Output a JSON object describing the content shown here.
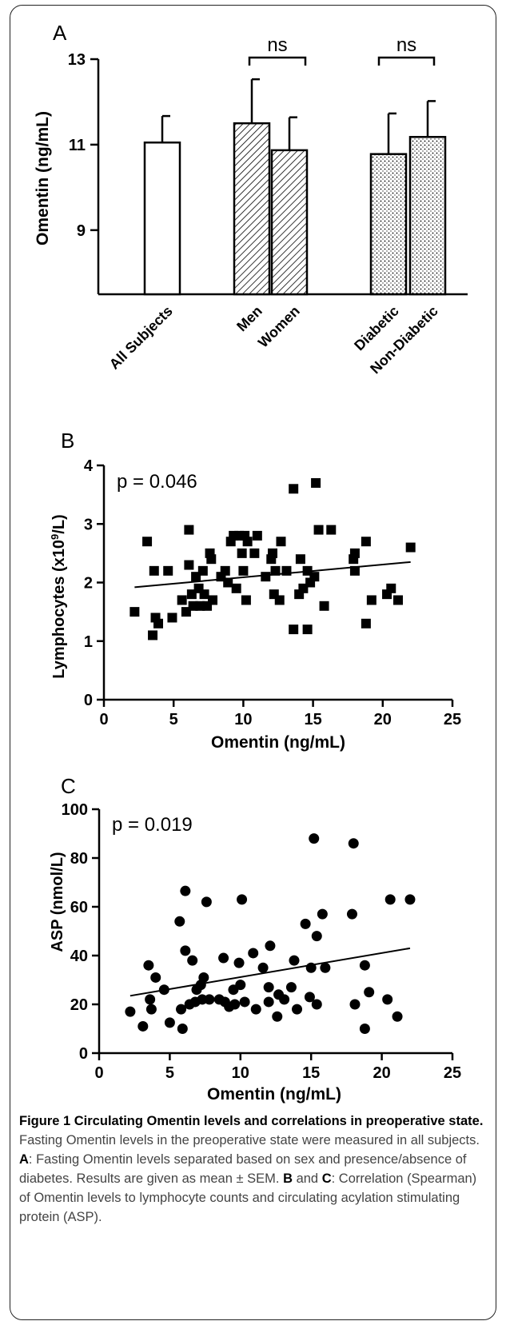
{
  "chart_data": [
    {
      "panel": "A",
      "type": "bar",
      "ylabel": "Omentin (ng/mL)",
      "ylim": [
        7.5,
        13
      ],
      "yticks": [
        9,
        11,
        13
      ],
      "categories": [
        "All Subjects",
        "Men",
        "Women",
        "Diabetic",
        "Non-Diabetic"
      ],
      "values": [
        11.05,
        11.5,
        10.87,
        10.78,
        11.18
      ],
      "errors": [
        0.62,
        1.03,
        0.77,
        0.95,
        0.84
      ],
      "fills": [
        "open",
        "hatched",
        "hatched",
        "dotted",
        "dotted"
      ],
      "comparisons": [
        {
          "pair": [
            "Men",
            "Women"
          ],
          "label": "ns"
        },
        {
          "pair": [
            "Diabetic",
            "Non-Diabetic"
          ],
          "label": "ns"
        }
      ]
    },
    {
      "panel": "B",
      "type": "scatter",
      "marker": "square",
      "annotation": "p = 0.046",
      "xlabel": "Omentin (ng/mL)",
      "ylabel_main": "Lymphocytes (x10",
      "ylabel_sup": "9",
      "ylabel_tail": "/L)",
      "xlim": [
        0,
        25
      ],
      "ylim": [
        0,
        4
      ],
      "xticks": [
        0,
        5,
        10,
        15,
        20,
        25
      ],
      "yticks": [
        0,
        1,
        2,
        3,
        4
      ],
      "trend": [
        [
          2.2,
          1.92
        ],
        [
          22,
          2.35
        ]
      ],
      "points": [
        [
          2.2,
          1.5
        ],
        [
          3.1,
          2.7
        ],
        [
          3.5,
          1.1
        ],
        [
          3.6,
          2.2
        ],
        [
          3.7,
          1.4
        ],
        [
          3.9,
          1.3
        ],
        [
          4.6,
          2.2
        ],
        [
          4.9,
          1.4
        ],
        [
          5.6,
          1.7
        ],
        [
          5.9,
          1.5
        ],
        [
          6.1,
          2.3
        ],
        [
          6.1,
          2.9
        ],
        [
          6.3,
          1.8
        ],
        [
          6.4,
          1.6
        ],
        [
          6.6,
          2.1
        ],
        [
          6.8,
          1.9
        ],
        [
          6.9,
          1.6
        ],
        [
          7.1,
          2.2
        ],
        [
          7.2,
          1.8
        ],
        [
          7.4,
          1.6
        ],
        [
          7.6,
          2.5
        ],
        [
          7.7,
          2.4
        ],
        [
          7.8,
          1.7
        ],
        [
          8.4,
          2.1
        ],
        [
          8.7,
          2.2
        ],
        [
          8.9,
          2.0
        ],
        [
          9.1,
          2.7
        ],
        [
          9.3,
          2.8
        ],
        [
          9.5,
          1.9
        ],
        [
          9.7,
          2.8
        ],
        [
          9.9,
          2.5
        ],
        [
          10.0,
          2.2
        ],
        [
          10.1,
          2.8
        ],
        [
          10.2,
          1.7
        ],
        [
          10.3,
          2.7
        ],
        [
          10.8,
          2.5
        ],
        [
          11.0,
          2.8
        ],
        [
          11.6,
          2.1
        ],
        [
          12.0,
          2.4
        ],
        [
          12.1,
          2.5
        ],
        [
          12.2,
          1.8
        ],
        [
          12.3,
          2.2
        ],
        [
          12.6,
          1.7
        ],
        [
          12.7,
          2.7
        ],
        [
          13.1,
          2.2
        ],
        [
          13.6,
          3.6
        ],
        [
          13.6,
          1.2
        ],
        [
          14.0,
          1.8
        ],
        [
          14.1,
          2.4
        ],
        [
          14.3,
          1.9
        ],
        [
          14.6,
          2.2
        ],
        [
          14.6,
          1.2
        ],
        [
          14.8,
          2.0
        ],
        [
          15.2,
          3.7
        ],
        [
          15.1,
          2.1
        ],
        [
          15.4,
          2.9
        ],
        [
          15.8,
          1.6
        ],
        [
          16.3,
          2.9
        ],
        [
          17.9,
          2.4
        ],
        [
          18.0,
          2.2
        ],
        [
          18.0,
          2.5
        ],
        [
          18.8,
          2.7
        ],
        [
          18.8,
          1.3
        ],
        [
          19.2,
          1.7
        ],
        [
          20.3,
          1.8
        ],
        [
          20.6,
          1.9
        ],
        [
          21.1,
          1.7
        ],
        [
          22.0,
          2.6
        ]
      ]
    },
    {
      "panel": "C",
      "type": "scatter",
      "marker": "circle",
      "annotation": "p = 0.019",
      "xlabel": "Omentin (ng/mL)",
      "ylabel": "ASP (nmol/L)",
      "xlim": [
        0,
        25
      ],
      "ylim": [
        0,
        100
      ],
      "xticks": [
        0,
        5,
        10,
        15,
        20,
        25
      ],
      "yticks": [
        0,
        20,
        40,
        60,
        80,
        100
      ],
      "trend": [
        [
          2.2,
          23.5
        ],
        [
          22,
          43
        ]
      ],
      "points": [
        [
          2.2,
          17
        ],
        [
          3.1,
          11
        ],
        [
          3.5,
          36
        ],
        [
          3.6,
          22
        ],
        [
          3.7,
          18
        ],
        [
          4.0,
          31
        ],
        [
          4.6,
          26
        ],
        [
          5.0,
          12.5
        ],
        [
          5.7,
          54
        ],
        [
          5.9,
          10
        ],
        [
          5.8,
          18
        ],
        [
          6.1,
          66.5
        ],
        [
          6.1,
          42
        ],
        [
          6.4,
          20
        ],
        [
          6.6,
          38
        ],
        [
          6.8,
          21
        ],
        [
          6.9,
          26
        ],
        [
          7.2,
          28
        ],
        [
          7.3,
          22
        ],
        [
          7.4,
          31
        ],
        [
          7.6,
          62
        ],
        [
          7.8,
          22
        ],
        [
          8.5,
          22
        ],
        [
          8.8,
          39
        ],
        [
          8.9,
          21
        ],
        [
          9.2,
          19
        ],
        [
          9.5,
          26
        ],
        [
          9.6,
          20
        ],
        [
          9.9,
          37
        ],
        [
          10.0,
          28
        ],
        [
          10.1,
          63
        ],
        [
          10.3,
          21
        ],
        [
          10.9,
          41
        ],
        [
          11.1,
          18
        ],
        [
          11.6,
          35
        ],
        [
          12.1,
          44
        ],
        [
          12.0,
          21
        ],
        [
          12.0,
          27
        ],
        [
          12.6,
          15
        ],
        [
          12.7,
          24
        ],
        [
          13.1,
          22
        ],
        [
          13.6,
          27
        ],
        [
          13.8,
          38
        ],
        [
          14.0,
          18
        ],
        [
          14.6,
          53
        ],
        [
          14.9,
          23
        ],
        [
          15.0,
          35
        ],
        [
          15.2,
          88
        ],
        [
          15.4,
          20
        ],
        [
          15.4,
          48
        ],
        [
          15.8,
          57
        ],
        [
          16.0,
          35
        ],
        [
          17.9,
          57
        ],
        [
          18.0,
          86
        ],
        [
          18.1,
          20
        ],
        [
          18.8,
          36
        ],
        [
          18.8,
          10
        ],
        [
          19.1,
          25
        ],
        [
          20.4,
          22
        ],
        [
          20.6,
          63
        ],
        [
          21.1,
          15
        ],
        [
          22.0,
          63
        ]
      ]
    }
  ],
  "caption": {
    "title": "Figure 1 Circulating Omentin levels and correlations in preoperative state.",
    "intro": "Fasting Omentin levels in the preoperative state were measured in all subjects.",
    "label_a": "A",
    "text_a": ": Fasting Omentin levels separated based on sex and presence/absence of diabetes. Results are given as mean ± SEM.",
    "label_b": "B",
    "and_word": " and ",
    "label_c": "C",
    "text_bc": ": Correlation (Spearman) of Omentin levels to lymphocyte counts and circulating acylation stimulating protein (ASP)."
  }
}
